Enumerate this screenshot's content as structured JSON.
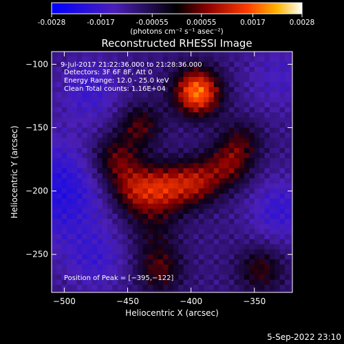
{
  "colorbar": {
    "ticks": [
      {
        "value": -0.0028,
        "label": "-0.0028"
      },
      {
        "value": -0.0017,
        "label": "-0.0017"
      },
      {
        "value": -0.00055,
        "label": "-0.00055"
      },
      {
        "value": 0.00055,
        "label": "0.00055"
      },
      {
        "value": 0.0017,
        "label": "0.0017"
      },
      {
        "value": 0.0028,
        "label": "0.0028"
      }
    ],
    "range": [
      -0.0028,
      0.0028
    ],
    "units_label": "(photons cm⁻² s⁻¹ asec⁻²)"
  },
  "chart_data": {
    "type": "heatmap",
    "title": "Reconstructed RHESSI Image",
    "xlabel": "Heliocentric X (arcsec)",
    "ylabel": "Heliocentric Y (arcsec)",
    "xlim": [
      -510,
      -320
    ],
    "ylim": [
      -280,
      -90
    ],
    "xticks": [
      {
        "value": -500,
        "label": "−500"
      },
      {
        "value": -450,
        "label": "−450"
      },
      {
        "value": -400,
        "label": "−400"
      },
      {
        "value": -350,
        "label": "−350"
      }
    ],
    "yticks": [
      {
        "value": -100,
        "label": "−100"
      },
      {
        "value": -150,
        "label": "−150"
      },
      {
        "value": -200,
        "label": "−200"
      },
      {
        "value": -250,
        "label": "−250"
      }
    ],
    "annotations": {
      "time_range": "9-Jul-2017 21:22:36.000 to 21:28:36.000",
      "detectors": "Detectors: 3F 6F 8F, Att 0",
      "energy": "Energy Range: 12.0 - 25.0 keV",
      "clean": "Clean     Total counts: 1.16E+04",
      "peak": "Position of Peak = [−395,−122]"
    },
    "peak": [
      -395,
      -122
    ],
    "sources": [
      {
        "x": -395,
        "y": -122,
        "sigma": 13,
        "amplitude": 0.0028
      },
      {
        "x": -440,
        "y": -148,
        "sigma": 12,
        "amplitude": 0.0012
      },
      {
        "x": -460,
        "y": -175,
        "sigma": 14,
        "amplitude": 0.0014
      },
      {
        "x": -445,
        "y": -200,
        "sigma": 14,
        "amplitude": 0.0016
      },
      {
        "x": -420,
        "y": -198,
        "sigma": 14,
        "amplitude": 0.0017
      },
      {
        "x": -395,
        "y": -193,
        "sigma": 13,
        "amplitude": 0.0015
      },
      {
        "x": -370,
        "y": -180,
        "sigma": 13,
        "amplitude": 0.0013
      },
      {
        "x": -360,
        "y": -160,
        "sigma": 12,
        "amplitude": 0.0009
      },
      {
        "x": -430,
        "y": -232,
        "sigma": 14,
        "amplitude": 0.0007
      },
      {
        "x": -425,
        "y": -262,
        "sigma": 13,
        "amplitude": 0.0012
      },
      {
        "x": -345,
        "y": -262,
        "sigma": 13,
        "amplitude": 0.0011
      }
    ],
    "negative_regions": [
      {
        "x": -505,
        "y": -200,
        "sigma": 30,
        "amplitude": -0.0012
      },
      {
        "x": -480,
        "y": -120,
        "sigma": 18,
        "amplitude": -0.0008
      },
      {
        "x": -330,
        "y": -110,
        "sigma": 20,
        "amplitude": -0.0006
      },
      {
        "x": -330,
        "y": -215,
        "sigma": 18,
        "amplitude": -0.0009
      },
      {
        "x": -475,
        "y": -255,
        "sigma": 18,
        "amplitude": -0.0007
      }
    ]
  },
  "footer": {
    "timestamp": "5-Sep-2022 23:10"
  }
}
